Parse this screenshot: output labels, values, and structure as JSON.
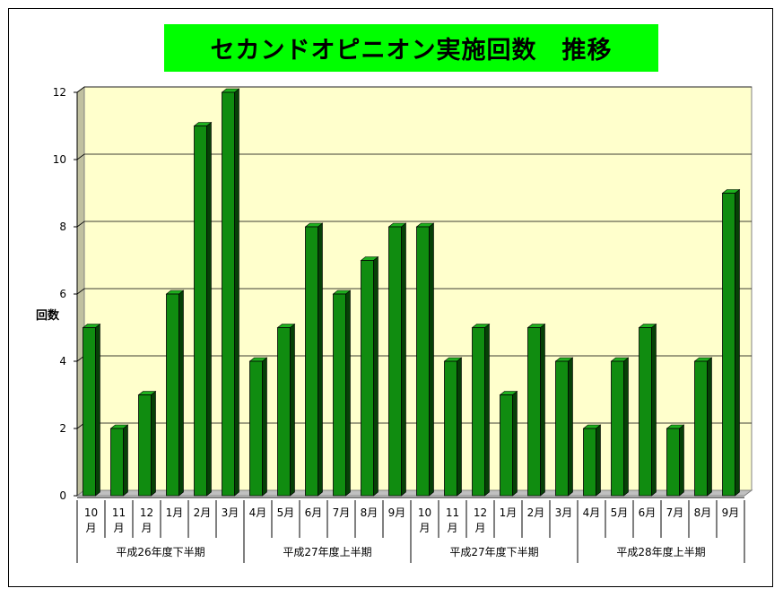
{
  "chart_data": {
    "type": "bar",
    "title": "セカンドオピニオン実施回数　推移",
    "ylabel": "回数",
    "ylim": [
      0,
      12
    ],
    "yticks": [
      0,
      2,
      4,
      6,
      8,
      10,
      12
    ],
    "grid": true,
    "categories": [
      [
        "10",
        "月"
      ],
      [
        "11",
        "月"
      ],
      [
        "12",
        "月"
      ],
      [
        "1月"
      ],
      [
        "2月"
      ],
      [
        "3月"
      ],
      [
        "4月"
      ],
      [
        "5月"
      ],
      [
        "6月"
      ],
      [
        "7月"
      ],
      [
        "8月"
      ],
      [
        "9月"
      ],
      [
        "10",
        "月"
      ],
      [
        "11",
        "月"
      ],
      [
        "12",
        "月"
      ],
      [
        "1月"
      ],
      [
        "2月"
      ],
      [
        "3月"
      ],
      [
        "4月"
      ],
      [
        "5月"
      ],
      [
        "6月"
      ],
      [
        "7月"
      ],
      [
        "8月"
      ],
      [
        "9月"
      ]
    ],
    "values": [
      5,
      2,
      3,
      6,
      11,
      12,
      4,
      5,
      8,
      6,
      7,
      8,
      8,
      4,
      5,
      3,
      5,
      4,
      2,
      4,
      5,
      2,
      4,
      9
    ],
    "groups": [
      {
        "label": "平成26年度下半期",
        "count": 6
      },
      {
        "label": "平成27年度上半期",
        "count": 6
      },
      {
        "label": "平成27年度下半期",
        "count": 6
      },
      {
        "label": "平成28年度上半期",
        "count": 6
      }
    ],
    "colors": {
      "bar_front": "#108c10",
      "bar_side": "#064006",
      "bar_top": "#1eb01e",
      "plot_bg": "#ffffcc",
      "wall": "#c0c0a0",
      "title_bg": "#00ff00"
    }
  }
}
